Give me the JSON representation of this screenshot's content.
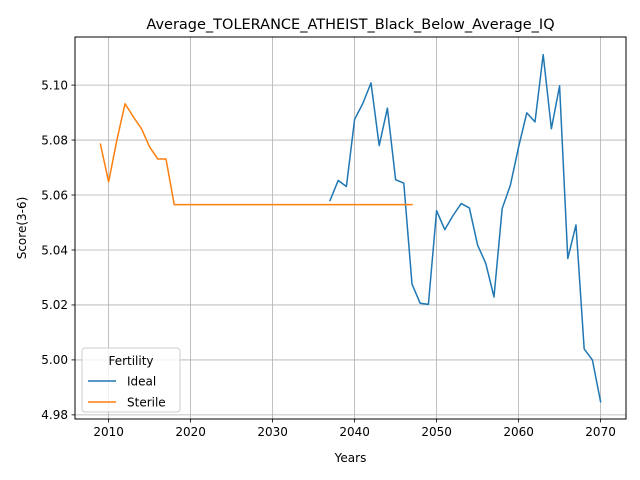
{
  "chart_data": {
    "type": "line",
    "title": "Average_TOLERANCE_ATHEIST_Black_Below_Average_IQ",
    "xlabel": "Years",
    "ylabel": "Score(3-6)",
    "xlim": [
      2005.9,
      2073.1
    ],
    "ylim": [
      4.9785,
      5.1175
    ],
    "xticks": [
      2010,
      2020,
      2030,
      2040,
      2050,
      2060,
      2070
    ],
    "yticks": [
      4.98,
      5.0,
      5.02,
      5.04,
      5.06,
      5.08,
      5.1
    ],
    "ytick_labels": [
      "4.98",
      "5.00",
      "5.02",
      "5.04",
      "5.06",
      "5.08",
      "5.10"
    ],
    "grid": true,
    "legend": {
      "title": "Fertility",
      "placement": "lower-left"
    },
    "series": [
      {
        "name": "Ideal",
        "color": "#1f77b4",
        "x": [
          2037,
          2038,
          2039,
          2040,
          2041,
          2042,
          2043,
          2044,
          2045,
          2046,
          2047,
          2048,
          2049,
          2050,
          2051,
          2052,
          2053,
          2054,
          2055,
          2056,
          2057,
          2058,
          2059,
          2060,
          2061,
          2062,
          2063,
          2064,
          2065,
          2066,
          2067,
          2068,
          2069,
          2070
        ],
        "y": [
          5.058,
          5.0653,
          5.0631,
          5.0875,
          5.0933,
          5.1008,
          5.078,
          5.0916,
          5.0656,
          5.0643,
          5.0276,
          5.0206,
          5.0202,
          5.0543,
          5.0474,
          5.0525,
          5.0569,
          5.0553,
          5.0418,
          5.0351,
          5.0229,
          5.0551,
          5.0636,
          5.0775,
          5.0899,
          5.0866,
          5.1111,
          5.0841,
          5.0997,
          5.0369,
          5.0491,
          5.004,
          5.0,
          4.9848
        ]
      },
      {
        "name": "Sterile",
        "color": "#ff7f0e",
        "x": [
          2009,
          2010,
          2011,
          2012,
          2013,
          2014,
          2015,
          2016,
          2017,
          2018,
          2047
        ],
        "y": [
          5.0785,
          5.0648,
          5.0799,
          5.0932,
          5.0885,
          5.0842,
          5.0775,
          5.0731,
          5.0731,
          5.0565,
          5.0565
        ]
      }
    ]
  }
}
